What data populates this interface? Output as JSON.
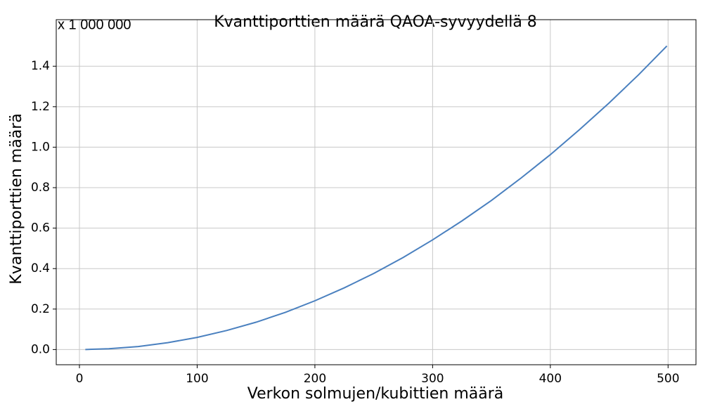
{
  "chart_data": {
    "type": "line",
    "title": "Kvanttiporttien määrä QAOA-syvyydellä 8",
    "annotation": "x 1 000 000",
    "xlabel": "Verkon solmujen/kubittien määrä",
    "ylabel": "Kvanttiporttien määrä",
    "x": [
      5,
      25,
      50,
      75,
      100,
      125,
      150,
      175,
      200,
      225,
      250,
      275,
      300,
      325,
      350,
      375,
      400,
      425,
      450,
      475,
      499
    ],
    "series": [
      {
        "name": "Kvanttiporttien määrä",
        "color": "#4a80bf",
        "values": [
          0.0002,
          0.004,
          0.015,
          0.034,
          0.06,
          0.094,
          0.135,
          0.184,
          0.241,
          0.305,
          0.376,
          0.455,
          0.542,
          0.636,
          0.737,
          0.847,
          0.963,
          1.088,
          1.219,
          1.358,
          1.5
        ]
      }
    ],
    "xlim": [
      -19.7,
      523.7
    ],
    "ylim": [
      -0.075,
      1.63
    ],
    "xticks": [
      0,
      100,
      200,
      300,
      400,
      500
    ],
    "yticks": [
      {
        "value": 0,
        "label": "0.0"
      },
      0.2,
      0.4,
      0.6,
      0.8,
      {
        "value": 1,
        "label": "1.0"
      },
      1.2,
      1.4
    ],
    "grid": true
  }
}
